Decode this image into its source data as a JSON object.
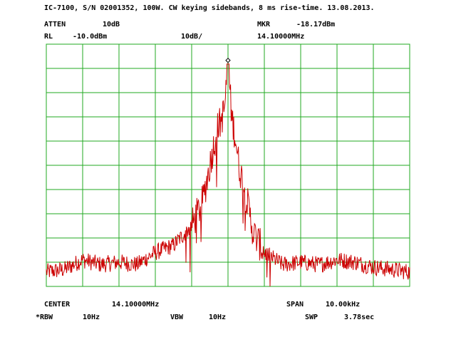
{
  "header": {
    "title": "IC-7100, S/N 02001352, 100W. CW keying sidebands, 8 ms rise-time. 13.08.2013.",
    "atten_label": "ATTEN",
    "atten_value": "10dB",
    "mkr_label": "MKR",
    "mkr_value": "-18.17dBm",
    "rl_label": "RL",
    "rl_value": "-10.0dBm",
    "scale_value": "10dB/",
    "mkr_freq": "14.10000MHz"
  },
  "footer": {
    "center_label": "CENTER",
    "center_value": "14.10000MHz",
    "span_label": "SPAN",
    "span_value": "10.00kHz",
    "rbw_label": "*RBW",
    "rbw_value": "10Hz",
    "vbw_label": "VBW",
    "vbw_value": "10Hz",
    "swp_label": "SWP",
    "swp_value": "3.78sec"
  },
  "colors": {
    "grid": "#22aa22",
    "trace": "#cc0000",
    "text": "#000000",
    "background": "#ffffff"
  },
  "chart_data": {
    "type": "line",
    "title": "IC-7100, S/N 02001352, 100W. CW keying sidebands, 8 ms rise-time. 13.08.2013.",
    "xlabel": "",
    "ylabel": "",
    "xlim": [
      14.095,
      14.105
    ],
    "ylim": [
      -110,
      -10
    ],
    "grid": true,
    "divisions": {
      "x": 10,
      "y": 10
    },
    "marker": {
      "x": 14.1,
      "y": -18.17
    },
    "series": [
      {
        "x": [
          14.095,
          14.0955,
          14.096,
          14.0965,
          14.097,
          14.0975,
          14.098,
          14.0985,
          14.099,
          14.0993,
          14.0995,
          14.0997,
          14.0998,
          14.0999,
          14.09995,
          14.1,
          14.10005,
          14.1001,
          14.1002,
          14.1003,
          14.1005,
          14.1007,
          14.101,
          14.1015,
          14.102,
          14.1025,
          14.103,
          14.1035,
          14.104,
          14.1045,
          14.105
        ],
        "y": [
          -104,
          -103,
          -99,
          -101,
          -100,
          -101,
          -96,
          -93,
          -85,
          -75,
          -60,
          -45,
          -42,
          -37,
          -28,
          -18.17,
          -28,
          -40,
          -48,
          -60,
          -73,
          -88,
          -96,
          -101,
          -100,
          -101,
          -99,
          -100,
          -102,
          -103,
          -104
        ]
      }
    ]
  }
}
